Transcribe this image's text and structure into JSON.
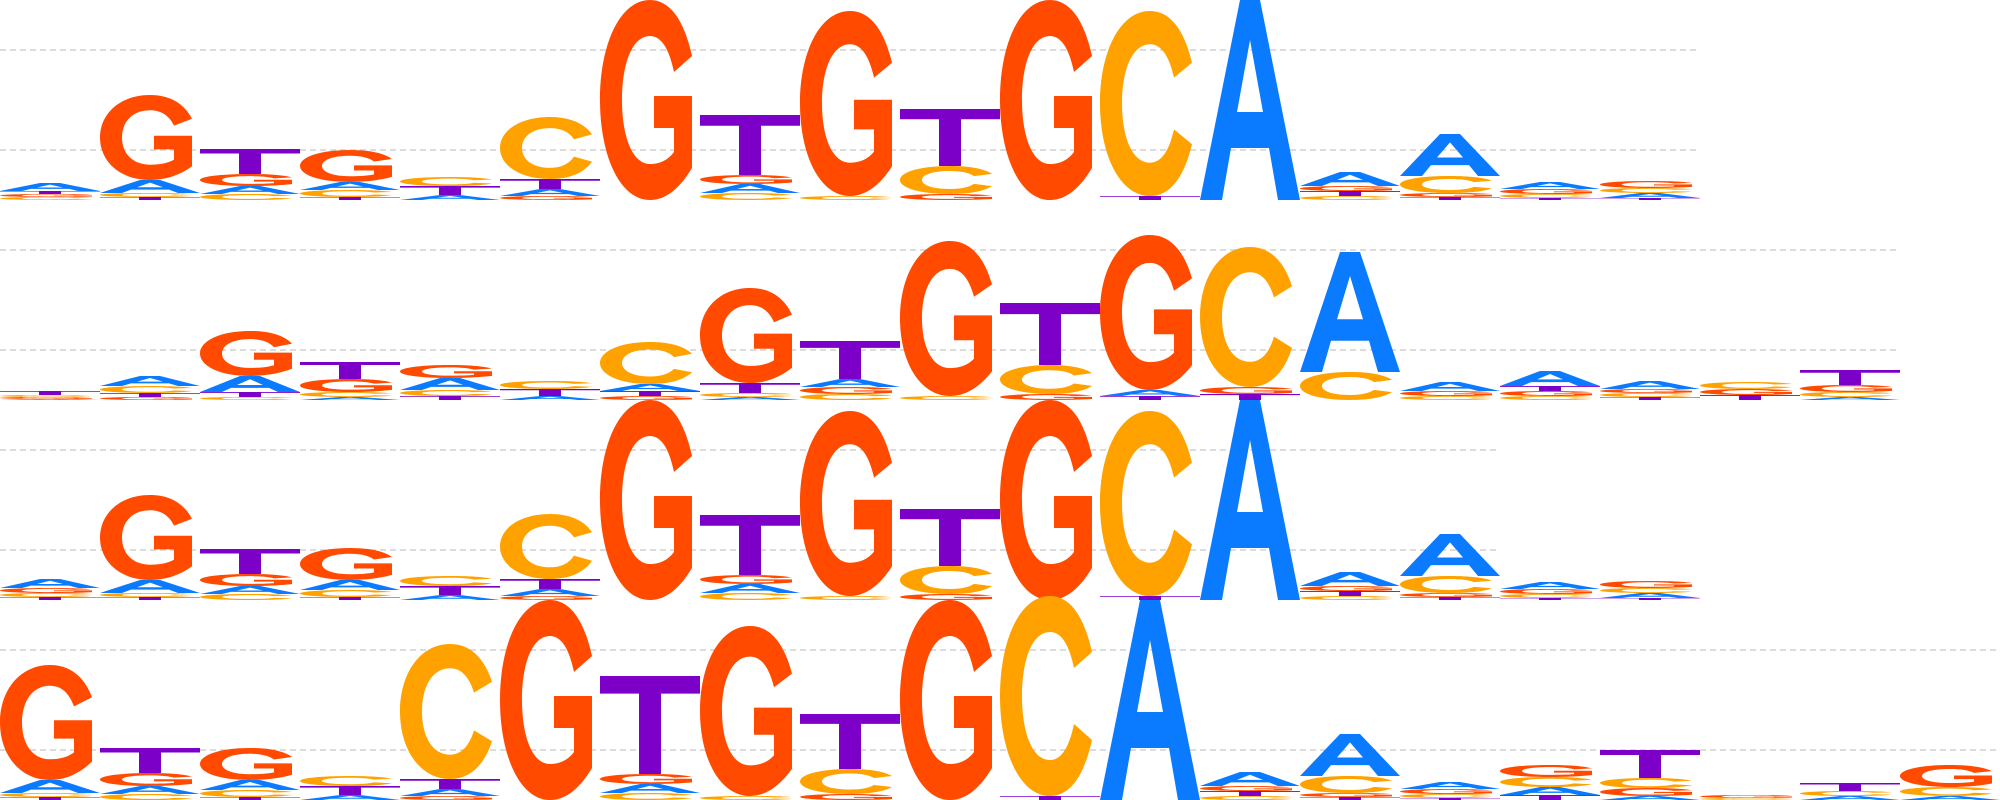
{
  "colors": {
    "A": "#0a7bff",
    "C": "#ffa200",
    "G": "#ff4a00",
    "T": "#7d00c8",
    "gridline": "#c8c8c8"
  },
  "logos": [
    {
      "name": "logo-row-1",
      "columns": [
        [
          [
            "C",
            0.03
          ],
          [
            "G",
            0.03
          ],
          [
            "T",
            0.03
          ],
          [
            "A",
            0.08
          ]
        ],
        [
          [
            "T",
            0.03
          ],
          [
            "C",
            0.04
          ],
          [
            "A",
            0.13
          ],
          [
            "G",
            0.85
          ]
        ],
        [
          [
            "T",
            0.25
          ],
          [
            "C",
            0.06
          ],
          [
            "G",
            0.12
          ],
          [
            "A",
            0.08
          ]
        ],
        [
          [
            "T",
            0.03
          ],
          [
            "C",
            0.07
          ],
          [
            "A",
            0.08
          ],
          [
            "G",
            0.32
          ]
        ],
        [
          [
            "A",
            0.05
          ],
          [
            "T",
            0.09
          ],
          [
            "C",
            0.09
          ]
        ],
        [
          [
            "A",
            0.07
          ],
          [
            "G",
            0.04
          ],
          [
            "T",
            0.1
          ],
          [
            "C",
            0.62
          ]
        ],
        [
          [
            "G",
            2.0
          ]
        ],
        [
          [
            "C",
            0.07
          ],
          [
            "A",
            0.09
          ],
          [
            "G",
            0.09
          ],
          [
            "T",
            0.6
          ]
        ],
        [
          [
            "C",
            0.04
          ],
          [
            "G",
            1.85
          ]
        ],
        [
          [
            "G",
            0.06
          ],
          [
            "C",
            0.28
          ],
          [
            "T",
            0.57
          ]
        ],
        [
          [
            "G",
            2.0
          ]
        ],
        [
          [
            "T",
            0.04
          ],
          [
            "C",
            1.85
          ]
        ],
        [
          [
            "A",
            2.0
          ]
        ],
        [
          [
            "C",
            0.04
          ],
          [
            "T",
            0.05
          ],
          [
            "G",
            0.05
          ],
          [
            "A",
            0.14
          ]
        ],
        [
          [
            "T",
            0.03
          ],
          [
            "G",
            0.04
          ],
          [
            "C",
            0.17
          ],
          [
            "A",
            0.42
          ]
        ],
        [
          [
            "T",
            0.02
          ],
          [
            "C",
            0.04
          ],
          [
            "G",
            0.05
          ],
          [
            "A",
            0.07
          ]
        ],
        [
          [
            "T",
            0.02
          ],
          [
            "A",
            0.05
          ],
          [
            "C",
            0.05
          ],
          [
            "G",
            0.07
          ]
        ]
      ]
    },
    {
      "name": "logo-row-2",
      "columns": [
        [
          [
            "G",
            0.02
          ],
          [
            "A",
            0.01
          ],
          [
            "C",
            0.02
          ],
          [
            "T",
            0.04
          ]
        ],
        [
          [
            "G",
            0.03
          ],
          [
            "T",
            0.04
          ],
          [
            "C",
            0.07
          ],
          [
            "A",
            0.1
          ]
        ],
        [
          [
            "C",
            0.03
          ],
          [
            "T",
            0.05
          ],
          [
            "A",
            0.16
          ],
          [
            "G",
            0.45
          ]
        ],
        [
          [
            "A",
            0.03
          ],
          [
            "C",
            0.05
          ],
          [
            "G",
            0.13
          ],
          [
            "T",
            0.17
          ]
        ],
        [
          [
            "T",
            0.04
          ],
          [
            "C",
            0.06
          ],
          [
            "A",
            0.12
          ],
          [
            "G",
            0.13
          ]
        ],
        [
          [
            "A",
            0.04
          ],
          [
            "T",
            0.07
          ],
          [
            "C",
            0.08
          ]
        ],
        [
          [
            "T",
            0.05
          ],
          [
            "A",
            0.07
          ],
          [
            "G",
            0.04
          ],
          [
            "C",
            0.42
          ]
        ],
        [
          [
            "T",
            0.1
          ],
          [
            "A",
            0.03
          ],
          [
            "C",
            0.04
          ],
          [
            "G",
            0.95
          ]
        ],
        [
          [
            "G",
            0.07
          ],
          [
            "C",
            0.06
          ],
          [
            "A",
            0.08
          ],
          [
            "T",
            0.38
          ]
        ],
        [
          [
            "C",
            0.04
          ],
          [
            "G",
            1.55
          ]
        ],
        [
          [
            "G",
            0.06
          ],
          [
            "C",
            0.29
          ],
          [
            "T",
            0.62
          ]
        ],
        [
          [
            "T",
            0.04
          ],
          [
            "A",
            0.06
          ],
          [
            "G",
            1.55
          ]
        ],
        [
          [
            "G",
            0.07
          ],
          [
            "T",
            0.06
          ],
          [
            "C",
            1.4
          ]
        ],
        [
          [
            "C",
            0.28
          ],
          [
            "A",
            1.2
          ]
        ],
        [
          [
            "C",
            0.04
          ],
          [
            "G",
            0.05
          ],
          [
            "A",
            0.09
          ]
        ],
        [
          [
            "C",
            0.04
          ],
          [
            "G",
            0.05
          ],
          [
            "T",
            0.05
          ],
          [
            "A",
            0.15
          ]
        ],
        [
          [
            "C",
            0.04
          ],
          [
            "T",
            0.03
          ],
          [
            "G",
            0.04
          ],
          [
            "A",
            0.08
          ]
        ],
        [
          [
            "T",
            0.05
          ],
          [
            "G",
            0.06
          ],
          [
            "C",
            0.07
          ]
        ],
        [
          [
            "A",
            0.03
          ],
          [
            "C",
            0.05
          ],
          [
            "G",
            0.07
          ],
          [
            "T",
            0.15
          ]
        ]
      ]
    },
    {
      "name": "logo-row-3",
      "columns": [
        [
          [
            "T",
            0.03
          ],
          [
            "C",
            0.04
          ],
          [
            "G",
            0.05
          ],
          [
            "A",
            0.09
          ]
        ],
        [
          [
            "T",
            0.03
          ],
          [
            "C",
            0.04
          ],
          [
            "A",
            0.13
          ],
          [
            "G",
            0.85
          ]
        ],
        [
          [
            "T",
            0.25
          ],
          [
            "C",
            0.06
          ],
          [
            "G",
            0.12
          ],
          [
            "A",
            0.08
          ]
        ],
        [
          [
            "T",
            0.03
          ],
          [
            "C",
            0.07
          ],
          [
            "A",
            0.1
          ],
          [
            "G",
            0.32
          ]
        ],
        [
          [
            "A",
            0.05
          ],
          [
            "T",
            0.09
          ],
          [
            "C",
            0.1
          ]
        ],
        [
          [
            "A",
            0.07
          ],
          [
            "G",
            0.04
          ],
          [
            "T",
            0.1
          ],
          [
            "C",
            0.65
          ]
        ],
        [
          [
            "G",
            2.0
          ]
        ],
        [
          [
            "C",
            0.07
          ],
          [
            "A",
            0.09
          ],
          [
            "G",
            0.09
          ],
          [
            "T",
            0.6
          ]
        ],
        [
          [
            "C",
            0.04
          ],
          [
            "G",
            1.85
          ]
        ],
        [
          [
            "G",
            0.06
          ],
          [
            "C",
            0.28
          ],
          [
            "T",
            0.57
          ]
        ],
        [
          [
            "G",
            2.0
          ]
        ],
        [
          [
            "T",
            0.04
          ],
          [
            "C",
            1.85
          ]
        ],
        [
          [
            "A",
            2.0
          ]
        ],
        [
          [
            "C",
            0.04
          ],
          [
            "T",
            0.05
          ],
          [
            "G",
            0.05
          ],
          [
            "A",
            0.14
          ]
        ],
        [
          [
            "T",
            0.03
          ],
          [
            "G",
            0.04
          ],
          [
            "C",
            0.17
          ],
          [
            "A",
            0.42
          ]
        ],
        [
          [
            "T",
            0.02
          ],
          [
            "C",
            0.04
          ],
          [
            "G",
            0.05
          ],
          [
            "A",
            0.07
          ]
        ],
        [
          [
            "T",
            0.02
          ],
          [
            "A",
            0.05
          ],
          [
            "C",
            0.05
          ],
          [
            "G",
            0.07
          ]
        ]
      ]
    },
    {
      "name": "logo-row-4",
      "columns": [
        [
          [
            "T",
            0.03
          ],
          [
            "C",
            0.04
          ],
          [
            "A",
            0.13
          ],
          [
            "G",
            1.15
          ]
        ],
        [
          [
            "T",
            0.25
          ],
          [
            "C",
            0.06
          ],
          [
            "G",
            0.13
          ],
          [
            "A",
            0.08
          ]
        ],
        [
          [
            "T",
            0.03
          ],
          [
            "C",
            0.07
          ],
          [
            "A",
            0.1
          ],
          [
            "G",
            0.32
          ]
        ],
        [
          [
            "A",
            0.05
          ],
          [
            "T",
            0.09
          ],
          [
            "C",
            0.1
          ]
        ],
        [
          [
            "A",
            0.07
          ],
          [
            "G",
            0.04
          ],
          [
            "T",
            0.1
          ],
          [
            "C",
            1.35
          ]
        ],
        [
          [
            "G",
            2.0
          ]
        ],
        [
          [
            "C",
            0.07
          ],
          [
            "A",
            0.09
          ],
          [
            "G",
            0.1
          ],
          [
            "T",
            0.98
          ]
        ],
        [
          [
            "C",
            0.04
          ],
          [
            "G",
            1.7
          ]
        ],
        [
          [
            "G",
            0.06
          ],
          [
            "C",
            0.25
          ],
          [
            "T",
            0.55
          ]
        ],
        [
          [
            "G",
            2.0
          ]
        ],
        [
          [
            "T",
            0.04
          ],
          [
            "C",
            2.0
          ]
        ],
        [
          [
            "A",
            2.0
          ]
        ],
        [
          [
            "C",
            0.04
          ],
          [
            "T",
            0.05
          ],
          [
            "G",
            0.05
          ],
          [
            "A",
            0.14
          ]
        ],
        [
          [
            "T",
            0.03
          ],
          [
            "G",
            0.04
          ],
          [
            "C",
            0.17
          ],
          [
            "A",
            0.42
          ]
        ],
        [
          [
            "T",
            0.02
          ],
          [
            "C",
            0.04
          ],
          [
            "G",
            0.05
          ],
          [
            "A",
            0.07
          ]
        ],
        [
          [
            "C",
            0.1
          ],
          [
            "G",
            0.12
          ],
          [
            "T",
            0.05
          ],
          [
            "A",
            0.08
          ]
        ],
        [
          [
            "A",
            0.04
          ],
          [
            "G",
            0.08
          ],
          [
            "T",
            0.28
          ],
          [
            "C",
            0.1
          ]
        ],
        [
          [
            "C",
            0.02
          ],
          [
            "G",
            0.03
          ]
        ],
        [
          [
            "C",
            0.05
          ],
          [
            "T",
            0.08
          ],
          [
            "A",
            0.04
          ]
        ],
        [
          [
            "C",
            0.09
          ],
          [
            "A",
            0.04
          ],
          [
            "G",
            0.22
          ]
        ]
      ]
    }
  ]
}
